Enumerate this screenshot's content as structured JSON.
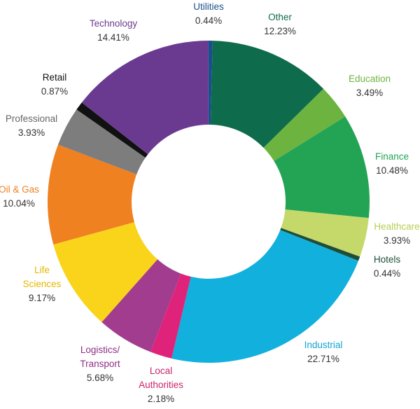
{
  "chart_data": {
    "type": "pie",
    "style": "donut",
    "start": "top",
    "direction": "clockwise",
    "legend": "none",
    "slices": [
      {
        "label": "Utilities",
        "display": "0.44%",
        "value": 0.44,
        "color": "#1b4f8c",
        "labelColor": "#1b4f8c"
      },
      {
        "label": "Other",
        "display": "12.23%",
        "value": 12.23,
        "color": "#0e6b4c",
        "labelColor": "#0e6b4c"
      },
      {
        "label": "Education",
        "display": "3.49%",
        "value": 3.49,
        "color": "#6cb33f",
        "labelColor": "#6cb33f"
      },
      {
        "label": "Finance",
        "display": "10.48%",
        "value": 10.48,
        "color": "#23a455",
        "labelColor": "#23a455"
      },
      {
        "label": "Healthcare",
        "display": "3.93%",
        "value": 3.93,
        "color": "#c4d96a",
        "labelColor": "#b6cf52"
      },
      {
        "label": "Hotels",
        "display": "0.44%",
        "value": 0.44,
        "color": "#1e4d37",
        "labelColor": "#1e4d37"
      },
      {
        "label": "Industrial",
        "display": "22.71%",
        "value": 22.71,
        "color": "#11b0dd",
        "labelColor": "#11a3d0"
      },
      {
        "label": "Local Authorities",
        "lines": [
          "Local",
          "Authorities"
        ],
        "display": "2.18%",
        "value": 2.18,
        "color": "#e0237a",
        "labelColor": "#c8246a"
      },
      {
        "label": "Logistics/ Transport",
        "lines": [
          "Logistics/",
          "Transport"
        ],
        "display": "5.68%",
        "value": 5.68,
        "color": "#a23c8f",
        "labelColor": "#8e2f86"
      },
      {
        "label": "Life Sciences",
        "lines": [
          "Life",
          "Sciences"
        ],
        "display": "9.17%",
        "value": 9.17,
        "color": "#f9d41a",
        "labelColor": "#e5b700"
      },
      {
        "label": "Oil & Gas",
        "display": "10.04%",
        "value": 10.04,
        "color": "#ef8121",
        "labelColor": "#ef8121"
      },
      {
        "label": "Professional",
        "display": "3.93%",
        "value": 3.93,
        "color": "#7d7d7d",
        "labelColor": "#666666"
      },
      {
        "label": "Retail",
        "display": "0.87%",
        "value": 0.87,
        "color": "#111111",
        "labelColor": "#111111"
      },
      {
        "label": "Technology",
        "display": "14.41%",
        "value": 14.41,
        "color": "#6a3a91",
        "labelColor": "#6a3a91"
      }
    ]
  }
}
